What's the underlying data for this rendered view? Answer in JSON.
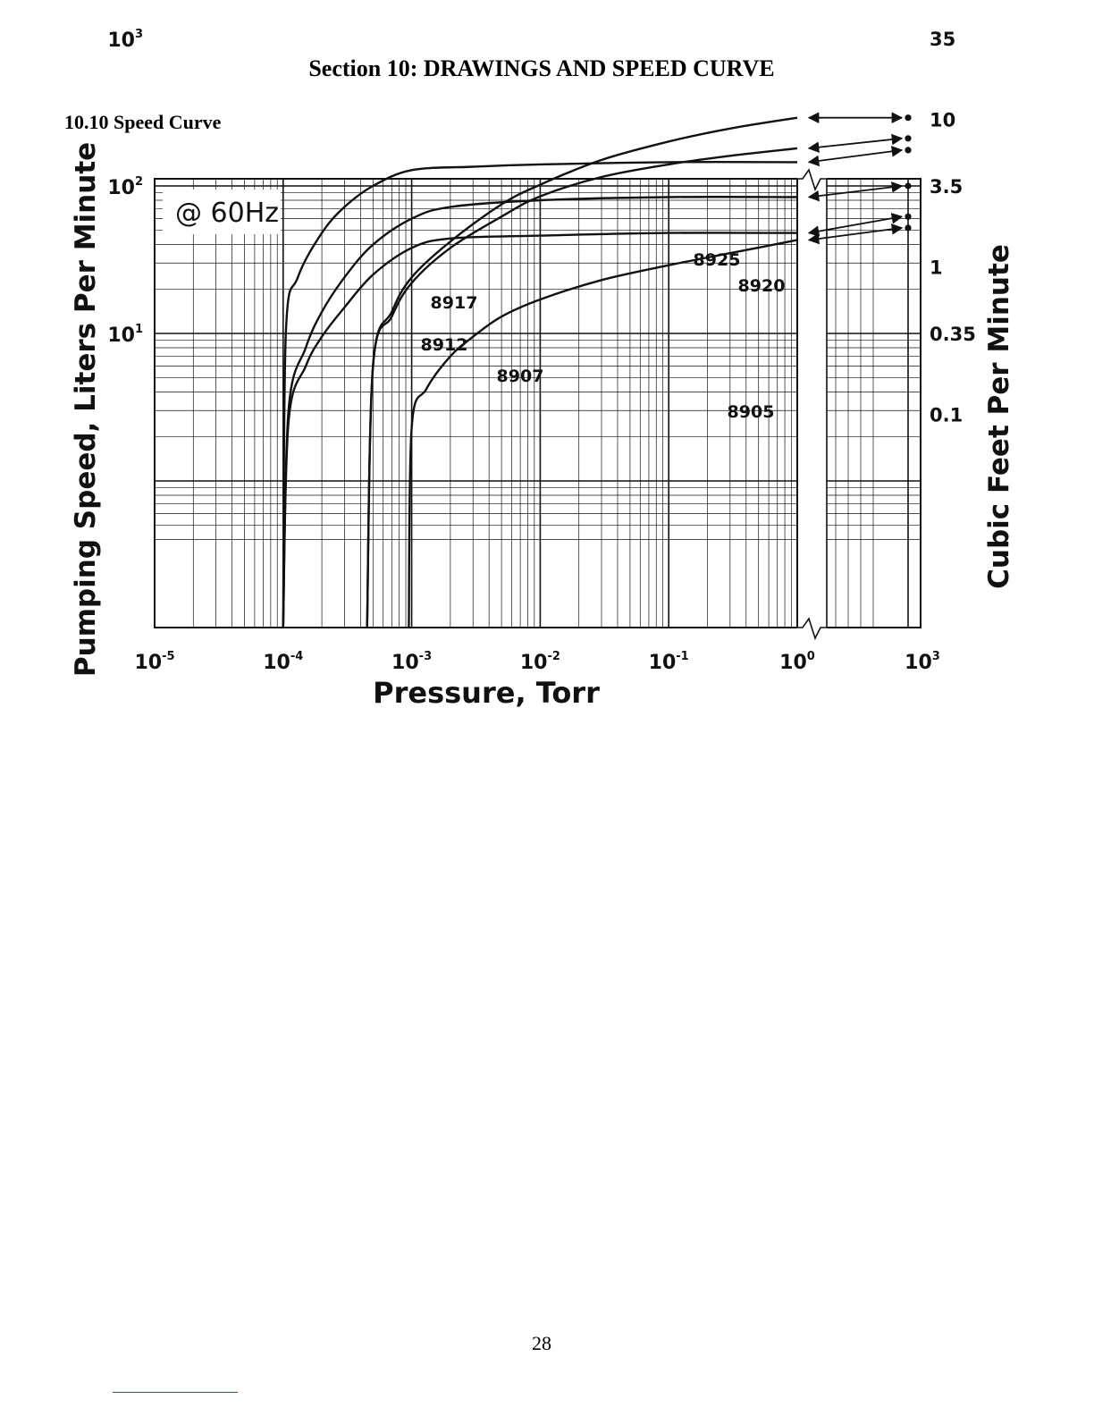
{
  "section_title": "Section 10:  DRAWINGS AND SPEED CURVE",
  "subsection_title": "10.10  Speed Curve",
  "page_number": "28",
  "chart_data": {
    "type": "line",
    "annotation": "@ 60Hz",
    "xlabel": "Pressure, Torr",
    "ylabel": "Pumping Speed, Liters Per Minute",
    "ylabel_right": "Cubic Feet Per Minute",
    "x_scale": "log",
    "y_scale": "log",
    "x_ticks": [
      {
        "base": "10",
        "exp": "-5",
        "value": 1e-05
      },
      {
        "base": "10",
        "exp": "-4",
        "value": 0.0001
      },
      {
        "base": "10",
        "exp": "-3",
        "value": 0.001
      },
      {
        "base": "10",
        "exp": "-2",
        "value": 0.01
      },
      {
        "base": "10",
        "exp": "-1",
        "value": 0.1
      },
      {
        "base": "10",
        "exp": "0",
        "value": 1
      },
      {
        "base": "10",
        "exp": "3",
        "value": 1000
      }
    ],
    "y_ticks": [
      {
        "base": "10",
        "exp": "3",
        "value": 1000
      },
      {
        "base": "10",
        "exp": "2",
        "value": 100
      },
      {
        "base": "10",
        "exp": "1",
        "value": 10
      }
    ],
    "y_right_ticks": [
      {
        "label": "35",
        "lpm": 1000
      },
      {
        "label": "10",
        "lpm": 283
      },
      {
        "label": "3.5",
        "lpm": 100
      },
      {
        "label": "1",
        "lpm": 28.3
      },
      {
        "label": "0.35",
        "lpm": 10
      },
      {
        "label": "0.1",
        "lpm": 2.83
      }
    ],
    "xlim": [
      1e-05,
      1000
    ],
    "axis_break": "between 10^0 and 10^3",
    "grid": true,
    "series": [
      {
        "name": "8925",
        "points": [
          [
            0.00045,
            1
          ],
          [
            0.0005,
            6
          ],
          [
            0.0007,
            14
          ],
          [
            0.001,
            24
          ],
          [
            0.002,
            42
          ],
          [
            0.005,
            75
          ],
          [
            0.01,
            102
          ],
          [
            0.03,
            150
          ],
          [
            0.1,
            200
          ],
          [
            0.3,
            245
          ],
          [
            1,
            290
          ]
        ],
        "atmosphere": 290
      },
      {
        "name": "8920",
        "points": [
          [
            0.00045,
            1
          ],
          [
            0.0005,
            6
          ],
          [
            0.0007,
            13
          ],
          [
            0.001,
            22
          ],
          [
            0.002,
            38
          ],
          [
            0.005,
            62
          ],
          [
            0.01,
            85
          ],
          [
            0.03,
            115
          ],
          [
            0.1,
            140
          ],
          [
            0.3,
            160
          ],
          [
            1,
            180
          ]
        ],
        "atmosphere": 210
      },
      {
        "name": "8917",
        "points": [
          [
            0.0001,
            1
          ],
          [
            0.000105,
            10
          ],
          [
            0.00013,
            24
          ],
          [
            0.0002,
            48
          ],
          [
            0.0003,
            72
          ],
          [
            0.0005,
            100
          ],
          [
            0.001,
            128
          ],
          [
            0.003,
            135
          ],
          [
            0.01,
            140
          ],
          [
            0.1,
            145
          ],
          [
            1,
            145
          ]
        ],
        "atmosphere": 175
      },
      {
        "name": "8912",
        "points": [
          [
            0.0001,
            1
          ],
          [
            0.00011,
            3
          ],
          [
            0.00015,
            8
          ],
          [
            0.0002,
            14
          ],
          [
            0.0003,
            24
          ],
          [
            0.0005,
            40
          ],
          [
            0.001,
            60
          ],
          [
            0.002,
            72
          ],
          [
            0.01,
            80
          ],
          [
            0.1,
            84
          ],
          [
            1,
            84
          ]
        ],
        "atmosphere": 100
      },
      {
        "name": "8907",
        "points": [
          [
            0.0001,
            1
          ],
          [
            0.00011,
            2.5
          ],
          [
            0.00015,
            6
          ],
          [
            0.0002,
            9.5
          ],
          [
            0.0003,
            15
          ],
          [
            0.0005,
            25
          ],
          [
            0.001,
            38
          ],
          [
            0.002,
            44
          ],
          [
            0.01,
            46
          ],
          [
            0.1,
            48
          ],
          [
            1,
            48
          ]
        ],
        "atmosphere": 62
      },
      {
        "name": "8905",
        "points": [
          [
            0.00095,
            1
          ],
          [
            0.001,
            2.3
          ],
          [
            0.0013,
            4.2
          ],
          [
            0.002,
            7
          ],
          [
            0.003,
            9.5
          ],
          [
            0.005,
            13
          ],
          [
            0.01,
            17
          ],
          [
            0.03,
            23
          ],
          [
            0.1,
            29
          ],
          [
            0.3,
            35
          ],
          [
            1,
            43
          ]
        ],
        "atmosphere": 52
      }
    ]
  }
}
